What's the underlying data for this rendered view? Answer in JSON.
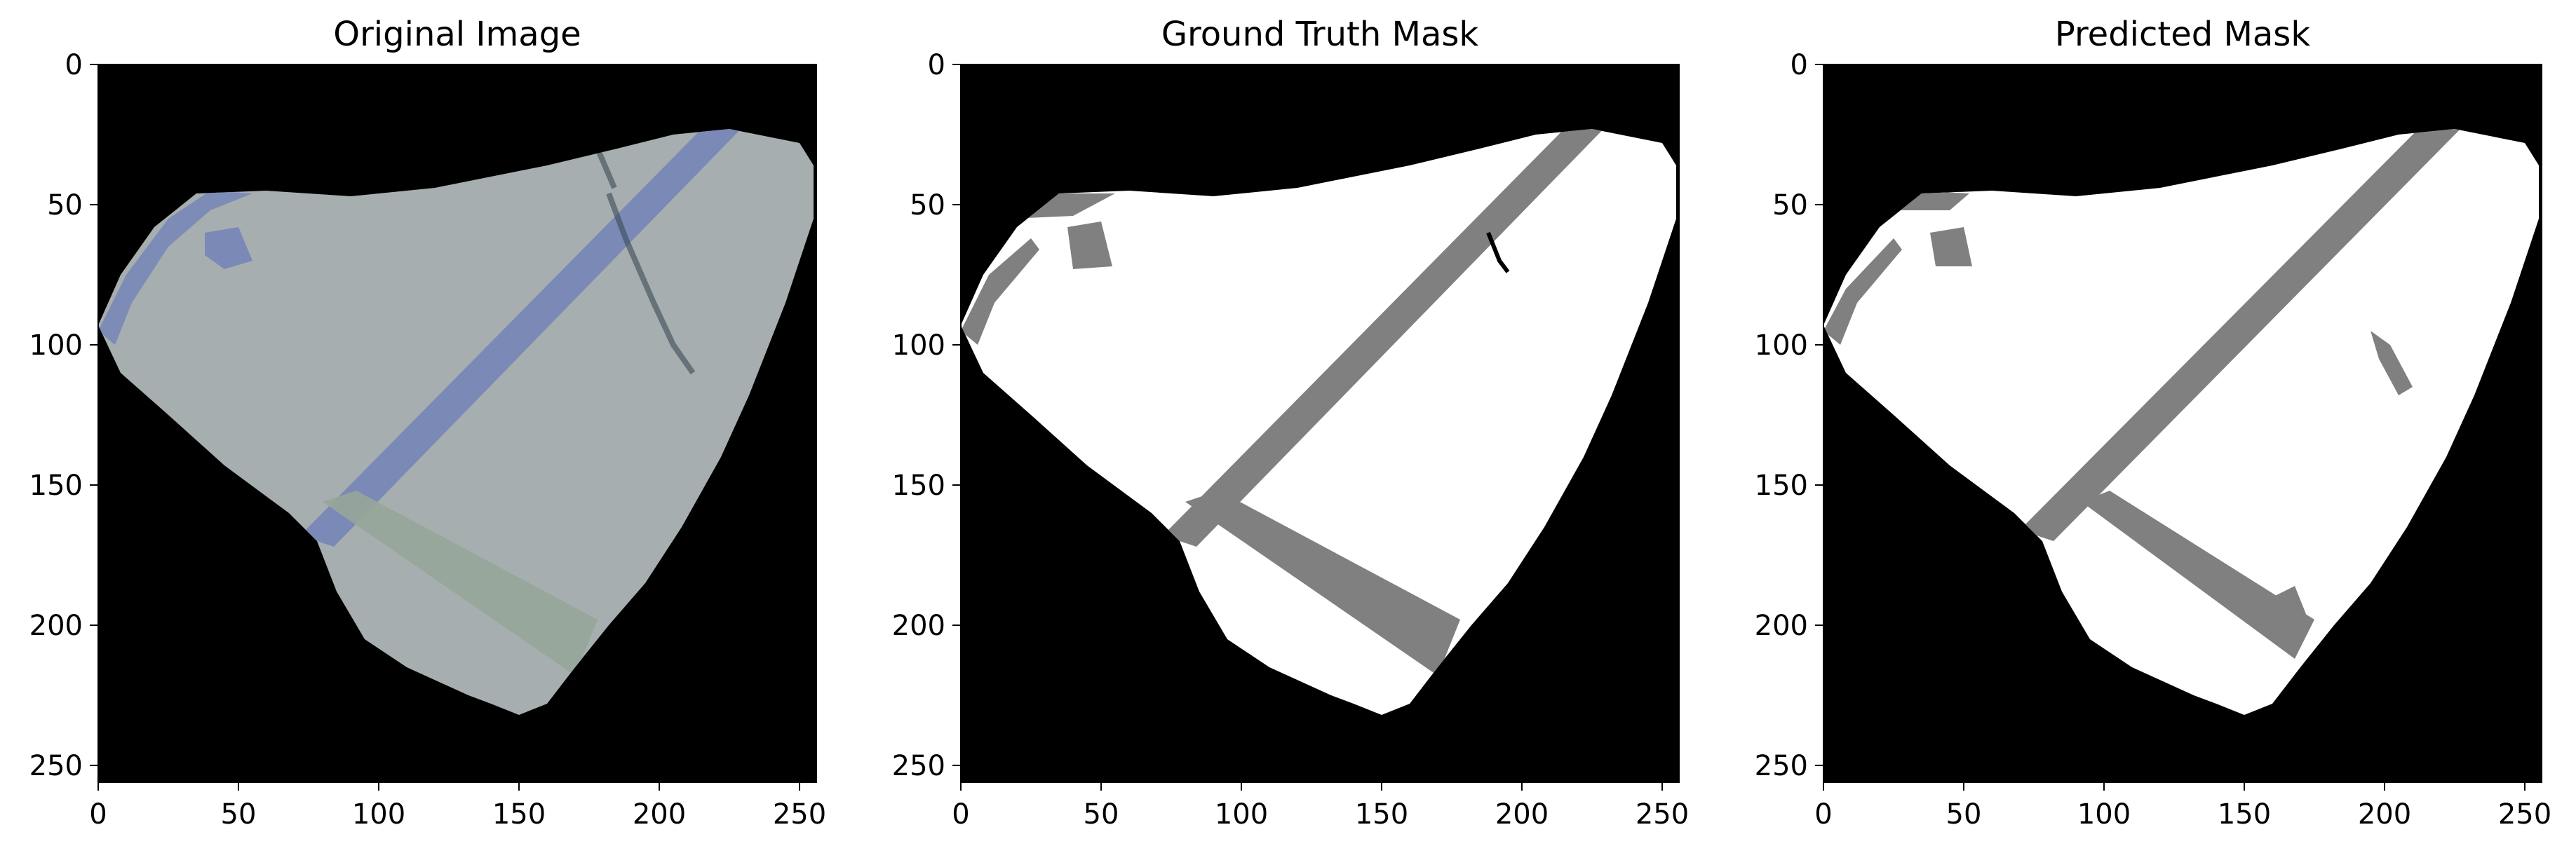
{
  "colors": {
    "background": "#000000",
    "specimen": "#a7aeb0",
    "blue_band": "#7383b8",
    "green_band": "#97a699",
    "mask_foreground": "#ffffff",
    "mask_band": "#808080"
  },
  "panels": [
    {
      "id": "original",
      "title": "Original Image",
      "xticks": [
        "0",
        "50",
        "100",
        "150",
        "200",
        "250"
      ],
      "yticks": [
        "0",
        "50",
        "100",
        "150",
        "200",
        "250"
      ]
    },
    {
      "id": "ground-truth",
      "title": "Ground Truth Mask",
      "xticks": [
        "0",
        "50",
        "100",
        "150",
        "200",
        "250"
      ],
      "yticks": [
        "0",
        "50",
        "100",
        "150",
        "200",
        "250"
      ]
    },
    {
      "id": "predicted",
      "title": "Predicted Mask",
      "xticks": [
        "0",
        "50",
        "100",
        "150",
        "200",
        "250"
      ],
      "yticks": [
        "0",
        "50",
        "100",
        "150",
        "200",
        "250"
      ]
    }
  ]
}
